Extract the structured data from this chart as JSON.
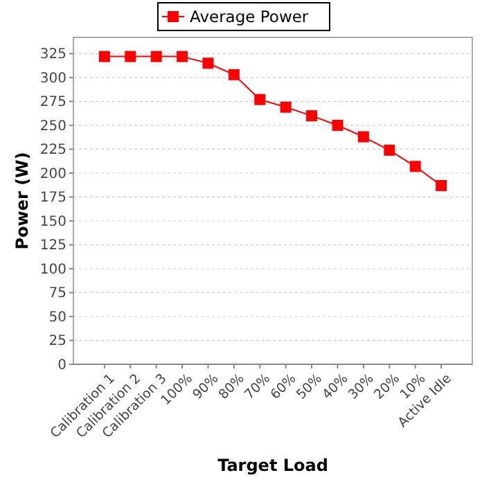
{
  "chart_data": {
    "type": "line",
    "xlabel": "Target Load",
    "ylabel": "Power (W)",
    "categories": [
      "Calibration 1",
      "Calibration 2",
      "Calibration 3",
      "100%",
      "90%",
      "80%",
      "70%",
      "60%",
      "50%",
      "40%",
      "30%",
      "20%",
      "10%",
      "Active Idle"
    ],
    "series": [
      {
        "name": "Average Power",
        "color": "#ff0000",
        "values": [
          322,
          322,
          322,
          322,
          315,
          303,
          277,
          269,
          260,
          250,
          238,
          224,
          207,
          187
        ]
      }
    ],
    "ylim": [
      0,
      342
    ],
    "yticks": [
      0,
      25,
      50,
      75,
      100,
      125,
      150,
      175,
      200,
      225,
      250,
      275,
      300,
      325
    ],
    "grid": "y",
    "legend": "top",
    "marker": "square"
  }
}
